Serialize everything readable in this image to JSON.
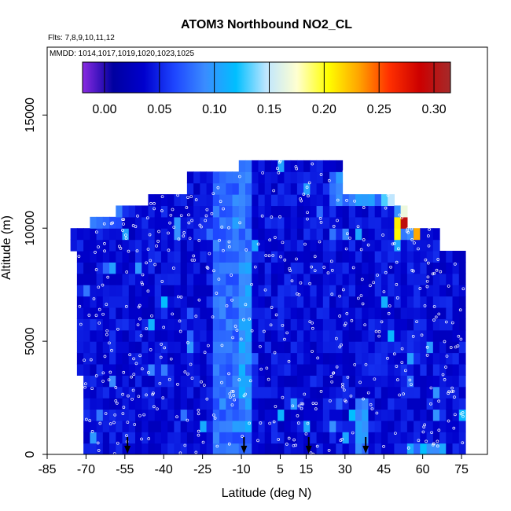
{
  "chart_data": {
    "type": "heatmap",
    "title": "ATOM3 Northbound NO2_CL",
    "subtitle_flights": "Flts: 7,8,9,10,11,12",
    "subtitle_dates": "MMDD: 1014,1017,1019,1020,1023,1025",
    "xlabel": "Latitude (deg N)",
    "ylabel": "Altitude (m)",
    "xlim": [
      -85,
      85
    ],
    "ylim": [
      0,
      18000
    ],
    "x_ticks": [
      "-85",
      "-70",
      "-55",
      "-40",
      "-25",
      "-10",
      "5",
      "15",
      "30",
      "45",
      "60",
      "75"
    ],
    "x_tick_values": [
      -85,
      -70,
      -55,
      -40,
      -25,
      -10,
      5,
      15,
      30,
      45,
      60,
      75
    ],
    "y_ticks": [
      "0",
      "5000",
      "10000",
      "15000"
    ],
    "y_tick_values": [
      0,
      5000,
      10000,
      15000
    ],
    "colorbar": {
      "ticks": [
        "0.00",
        "0.05",
        "0.10",
        "0.15",
        "0.20",
        "0.25",
        "0.30"
      ],
      "tick_values": [
        0.0,
        0.05,
        0.1,
        0.15,
        0.2,
        0.25,
        0.3
      ],
      "range": [
        -0.02,
        0.315
      ],
      "colors": [
        "#8a2be2",
        "#0000a0",
        "#0000cd",
        "#1e46ff",
        "#3a8cff",
        "#00bfff",
        "#bfe6ff",
        "#ffffd0",
        "#ffff00",
        "#ffa500",
        "#ff3000",
        "#cc0000",
        "#a52a2a"
      ]
    },
    "flight_latitudes_arrows": [
      -54,
      -9,
      16,
      38
    ],
    "grid": false,
    "bin_width_deg": 2.5,
    "bin_height_m": 500,
    "top_altitude_profile": [
      {
        "lat_min": -75,
        "lat_max": -68,
        "top": 10000
      },
      {
        "lat_min": -68,
        "lat_max": -58,
        "top": 10500
      },
      {
        "lat_min": -58,
        "lat_max": -45,
        "top": 11000
      },
      {
        "lat_min": -45,
        "lat_max": -30,
        "top": 11500
      },
      {
        "lat_min": -30,
        "lat_max": -10,
        "top": 12500
      },
      {
        "lat_min": -10,
        "lat_max": 30,
        "top": 13000
      },
      {
        "lat_min": 30,
        "lat_max": 50,
        "top": 11500
      },
      {
        "lat_min": 50,
        "lat_max": 55,
        "top": 11000
      },
      {
        "lat_min": 55,
        "lat_max": 66,
        "top": 10000
      },
      {
        "lat_min": 66,
        "lat_max": 77,
        "top": 9000
      }
    ],
    "features": [
      {
        "lat_min": -20,
        "lat_max": -5,
        "alt_min": 0,
        "alt_max": 13000,
        "value": 0.08
      },
      {
        "lat_min": -12,
        "lat_max": -7,
        "alt_min": 2000,
        "alt_max": 9000,
        "value": 0.1
      },
      {
        "lat_min": 50,
        "lat_max": 60,
        "alt_min": 9500,
        "alt_max": 11000,
        "value": 0.2
      },
      {
        "lat_min": 52,
        "lat_max": 58,
        "alt_min": 9800,
        "alt_max": 10400,
        "value": 0.3
      },
      {
        "lat_min": 45,
        "lat_max": 60,
        "alt_min": 11000,
        "alt_max": 12000,
        "value": 0.14
      },
      {
        "lat_min": 25,
        "lat_max": 45,
        "alt_min": 11000,
        "alt_max": 12500,
        "value": 0.09
      },
      {
        "lat_min": -70,
        "lat_max": -55,
        "alt_min": 10000,
        "alt_max": 11000,
        "value": 0.08
      },
      {
        "lat_min": -10,
        "lat_max": -5,
        "alt_min": 800,
        "alt_max": 1500,
        "value": 0.12
      },
      {
        "lat_min": 35,
        "lat_max": 40,
        "alt_min": 0,
        "alt_max": 2500,
        "value": 0.09
      },
      {
        "lat_min": 60,
        "lat_max": 70,
        "alt_min": 0,
        "alt_max": 500,
        "value": 0.11
      }
    ]
  }
}
